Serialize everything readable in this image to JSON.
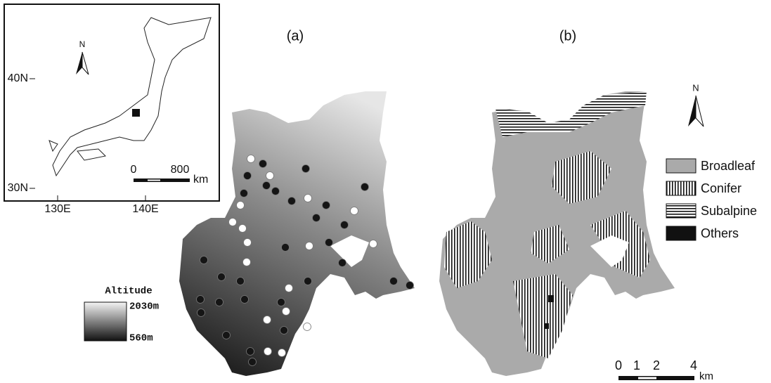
{
  "inset": {
    "north": "N",
    "lat_labels": [
      "40N",
      "30N"
    ],
    "lon_labels": [
      "130E",
      "140E"
    ],
    "scale": [
      "0",
      "800"
    ],
    "scale_unit": "km"
  },
  "panel_a": {
    "label": "(a)",
    "legend_title": "Altitude",
    "max": "2030m",
    "min": "560m"
  },
  "panel_b": {
    "label": "(b)",
    "north": "N",
    "legend": [
      "Broadleaf",
      "Conifer",
      "Subalpine",
      "Others"
    ],
    "scale": [
      "0",
      "1",
      "2",
      "4"
    ],
    "scale_unit": "km"
  }
}
